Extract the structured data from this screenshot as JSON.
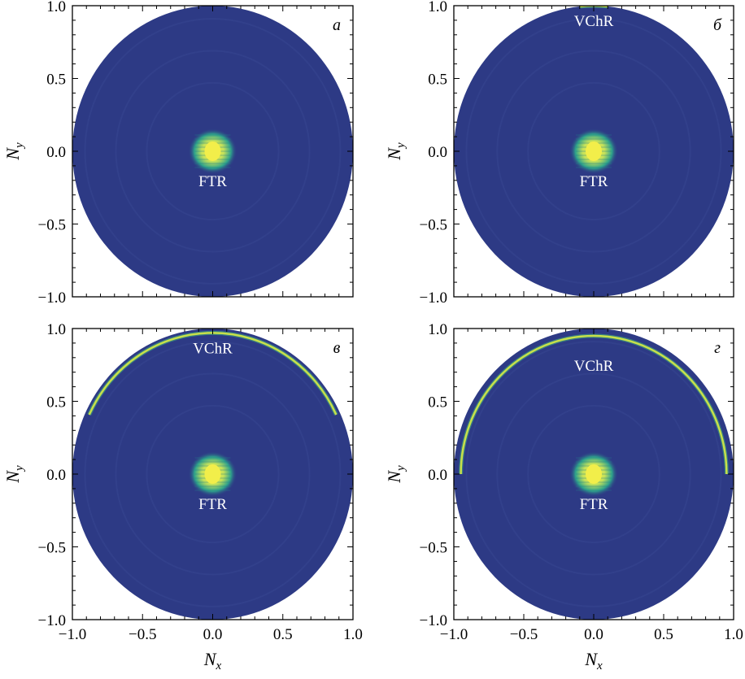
{
  "chart_data": [
    {
      "type": "heatmap",
      "panel_label": "а",
      "xlabel": "N",
      "xlabel_sub": "x",
      "ylabel": "N",
      "ylabel_sub": "y",
      "xlim": [
        -1.0,
        1.0
      ],
      "ylim": [
        -1.0,
        1.0
      ],
      "xticks": [],
      "yticks": [
        "1.0",
        "0.5",
        "0.0",
        "−0.5",
        "−1.0"
      ],
      "show_xlabel": false,
      "show_ylabel": true,
      "colors": {
        "background": "#2d3a85",
        "ring": "#c8e04a",
        "peak": "#f2ee4a"
      },
      "disk_radius": 1.0,
      "peaks": [
        {
          "x": 0.0,
          "y": 0.0,
          "label": "FTR",
          "label_y": -0.2
        }
      ],
      "rings": []
    },
    {
      "type": "heatmap",
      "panel_label": "б",
      "xlabel": "N",
      "xlabel_sub": "x",
      "ylabel": "N",
      "ylabel_sub": "y",
      "xlim": [
        -1.0,
        1.0
      ],
      "ylim": [
        -1.0,
        1.0
      ],
      "xticks": [],
      "yticks": [
        "1.0",
        "0.5",
        "0.0",
        "−0.5",
        "−1.0"
      ],
      "show_xlabel": false,
      "show_ylabel": true,
      "colors": {
        "background": "#2d3a85",
        "ring": "#c8e04a",
        "peak": "#f2ee4a"
      },
      "disk_radius": 1.0,
      "peaks": [
        {
          "x": 0.0,
          "y": 0.0,
          "label": "FTR",
          "label_y": -0.2
        }
      ],
      "rings": [
        {
          "y_top": 1.0,
          "half_width": 0.1,
          "label": "VChR",
          "label_y": 0.9
        }
      ]
    },
    {
      "type": "heatmap",
      "panel_label": "в",
      "xlabel": "N",
      "xlabel_sub": "x",
      "ylabel": "N",
      "ylabel_sub": "y",
      "xlim": [
        -1.0,
        1.0
      ],
      "ylim": [
        -1.0,
        1.0
      ],
      "xticks": [
        "−1.0",
        "−0.5",
        "0.0",
        "0.5",
        "1.0"
      ],
      "yticks": [
        "1.0",
        "0.5",
        "0.0",
        "−0.5",
        "−1.0"
      ],
      "show_xlabel": true,
      "show_ylabel": true,
      "colors": {
        "background": "#2d3a85",
        "ring": "#c8e04a",
        "peak": "#f2ee4a"
      },
      "disk_radius": 1.0,
      "peaks": [
        {
          "x": 0.0,
          "y": 0.0,
          "label": "FTR",
          "label_y": -0.2
        }
      ],
      "rings": [
        {
          "y_top": 0.97,
          "half_width": 0.88,
          "label": "VChR",
          "label_y": 0.87
        }
      ]
    },
    {
      "type": "heatmap",
      "panel_label": "г",
      "xlabel": "N",
      "xlabel_sub": "x",
      "ylabel": "N",
      "ylabel_sub": "y",
      "xlim": [
        -1.0,
        1.0
      ],
      "ylim": [
        -1.0,
        1.0
      ],
      "xticks": [
        "−1.0",
        "−0.5",
        "0.0",
        "0.5",
        "1.0"
      ],
      "yticks": [
        "1.0",
        "0.5",
        "0.0",
        "−0.5",
        "−1.0"
      ],
      "show_xlabel": true,
      "show_ylabel": true,
      "colors": {
        "background": "#2d3a85",
        "ring": "#c8e04a",
        "peak": "#f2ee4a"
      },
      "disk_radius": 1.0,
      "peaks": [
        {
          "x": 0.0,
          "y": 0.0,
          "label": "FTR",
          "label_y": -0.2
        }
      ],
      "rings": [
        {
          "y_top": 0.87,
          "half_width": 0.95,
          "label": "VChR",
          "label_y": 0.75
        }
      ]
    }
  ]
}
